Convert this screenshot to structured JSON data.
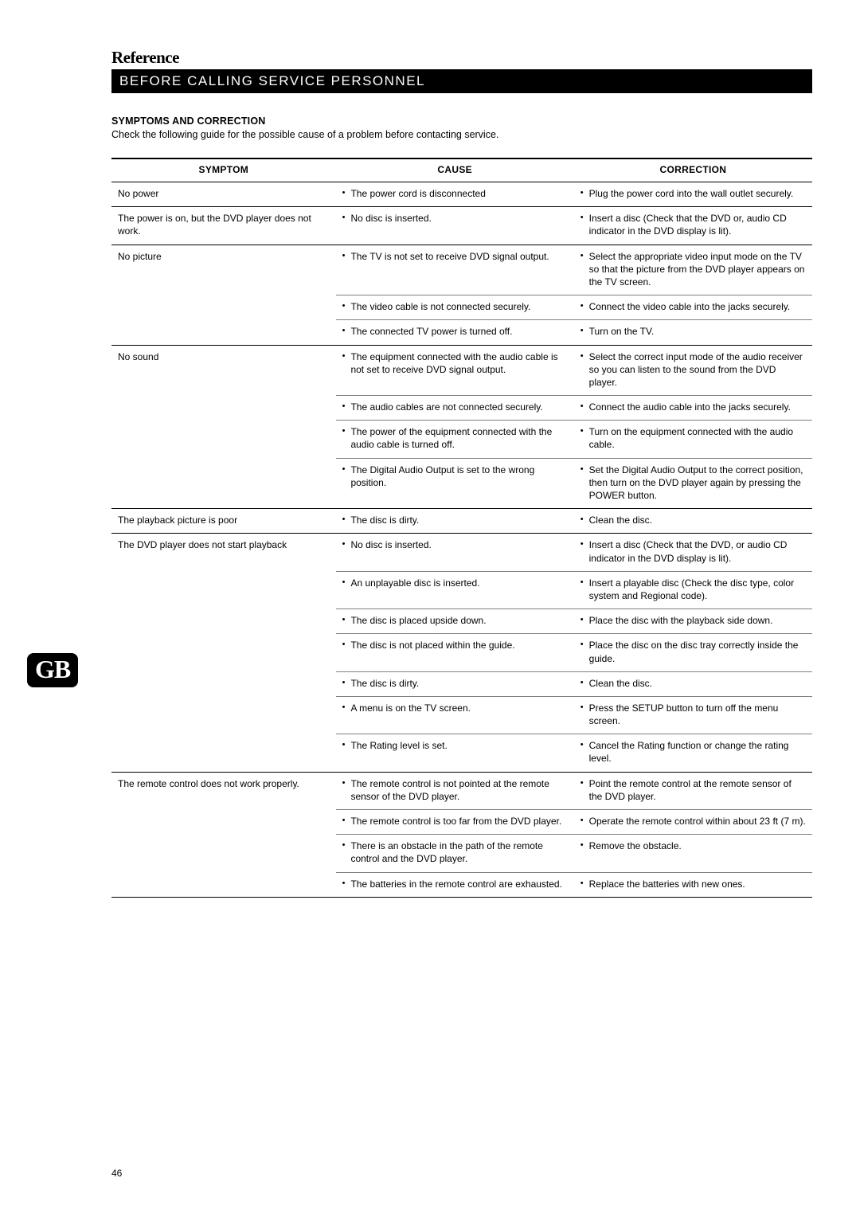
{
  "section_title": "Reference",
  "header_bar": "BEFORE CALLING SERVICE PERSONNEL",
  "subhead": "SYMPTOMS AND CORRECTION",
  "intro": "Check the following guide for the possible cause of a problem before contacting service.",
  "headers": {
    "symptom": "SYMPTOM",
    "cause": "CAUSE",
    "correction": "CORRECTION"
  },
  "lang_tab": "GB",
  "page_number": "46",
  "rows": [
    {
      "symptom": "No power",
      "items": [
        {
          "cause": "The power cord is disconnected",
          "correction": "Plug the power cord into the wall outlet securely."
        }
      ]
    },
    {
      "symptom": "The power is on, but the DVD player does not work.",
      "items": [
        {
          "cause": "No disc is inserted.",
          "correction": "Insert a disc (Check that the DVD or, audio CD indicator in the DVD display is lit)."
        }
      ]
    },
    {
      "symptom": "No picture",
      "items": [
        {
          "cause": "The TV is not set to receive DVD signal output.",
          "correction": "Select the appropriate video input mode on the TV so that the picture from the DVD player appears on the TV screen."
        },
        {
          "cause": "The video cable is not connected securely.",
          "correction": "Connect the video cable into the jacks securely."
        },
        {
          "cause": "The connected TV power is turned off.",
          "correction": "Turn on the TV."
        }
      ]
    },
    {
      "symptom": "No sound",
      "items": [
        {
          "cause": "The equipment connected with the audio cable is not set to receive DVD signal output.",
          "correction": "Select the correct input mode of the audio receiver so you can listen to the sound from the DVD player."
        },
        {
          "cause": "The audio cables are not connected securely.",
          "correction": "Connect the audio cable into the jacks securely."
        },
        {
          "cause": "The power of the equipment connected with the audio cable is turned off.",
          "correction": "Turn on the equipment connected with the audio cable."
        },
        {
          "cause": "The Digital Audio Output is set to the wrong position.",
          "correction": "Set the Digital Audio Output to the correct position, then turn on the DVD player again by pressing the POWER button."
        }
      ]
    },
    {
      "symptom": "The playback picture is poor",
      "items": [
        {
          "cause": "The disc is dirty.",
          "correction": "Clean the disc."
        }
      ]
    },
    {
      "symptom": "The DVD player does not start playback",
      "items": [
        {
          "cause": "No disc is inserted.",
          "correction": "Insert a disc (Check that the DVD, or audio CD indicator in the DVD display is lit)."
        },
        {
          "cause": "An unplayable disc is inserted.",
          "correction": "Insert a playable disc (Check the disc type, color system and Regional code)."
        },
        {
          "cause": "The disc is placed upside down.",
          "correction": "Place the disc with the playback side down."
        },
        {
          "cause": "The disc is not placed within the guide.",
          "correction": "Place the disc on the disc tray correctly inside the guide."
        },
        {
          "cause": "The disc is dirty.",
          "correction": "Clean the disc."
        },
        {
          "cause": "A menu is on the TV screen.",
          "correction": "Press the SETUP button to turn off the menu screen."
        },
        {
          "cause": "The Rating level is set.",
          "correction": "Cancel the Rating function or change the rating level."
        }
      ]
    },
    {
      "symptom": "The remote control does not work properly.",
      "items": [
        {
          "cause": "The remote control is not pointed at the remote sensor of the DVD player.",
          "correction": "Point the remote control at the remote sensor of the DVD player."
        },
        {
          "cause": "The remote control is too far from the DVD player.",
          "correction": "Operate the remote control within about 23 ft (7 m)."
        },
        {
          "cause": "There is an obstacle in the path of the remote control and the DVD player.",
          "correction": "Remove the obstacle."
        },
        {
          "cause": "The batteries in the remote control are exhausted.",
          "correction": "Replace the batteries with new ones."
        }
      ]
    }
  ]
}
